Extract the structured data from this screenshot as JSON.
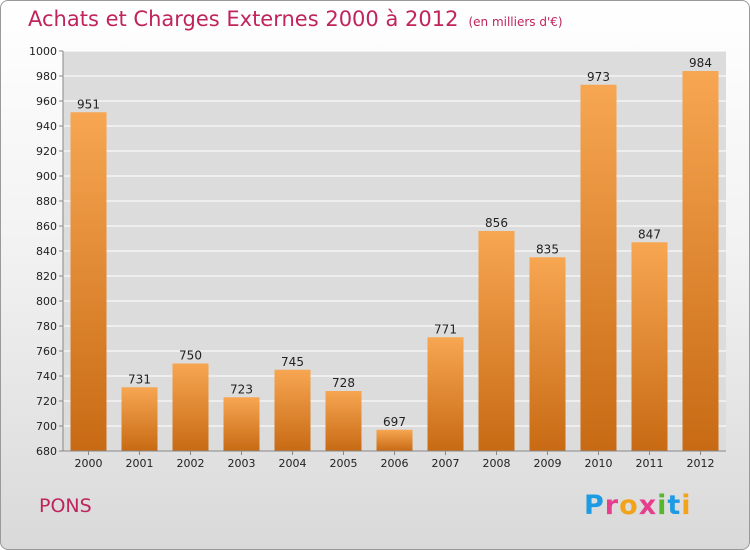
{
  "header": {
    "title": "Achats et Charges Externes 2000 à 2012",
    "unit": "(en milliers d'€)"
  },
  "footer": {
    "place": "PONS",
    "brand": "Proxiti"
  },
  "colors": {
    "bar_top": "#f7a652",
    "bar_bottom": "#c86a14",
    "title": "#c0245c",
    "grid": "#ffffff"
  },
  "chart_data": {
    "type": "bar",
    "title": "Achats et Charges Externes 2000 à 2012",
    "subtitle": "(en milliers d'€)",
    "xlabel": "",
    "ylabel": "",
    "categories": [
      "2000",
      "2001",
      "2002",
      "2003",
      "2004",
      "2005",
      "2006",
      "2007",
      "2008",
      "2009",
      "2010",
      "2011",
      "2012"
    ],
    "values": [
      951,
      731,
      750,
      723,
      745,
      728,
      697,
      771,
      856,
      835,
      973,
      847,
      984
    ],
    "ylim": [
      680,
      1000
    ],
    "yticks": [
      680,
      700,
      720,
      740,
      760,
      780,
      800,
      820,
      840,
      860,
      880,
      900,
      920,
      940,
      960,
      980,
      1000
    ],
    "grid": true,
    "legend": "none"
  }
}
